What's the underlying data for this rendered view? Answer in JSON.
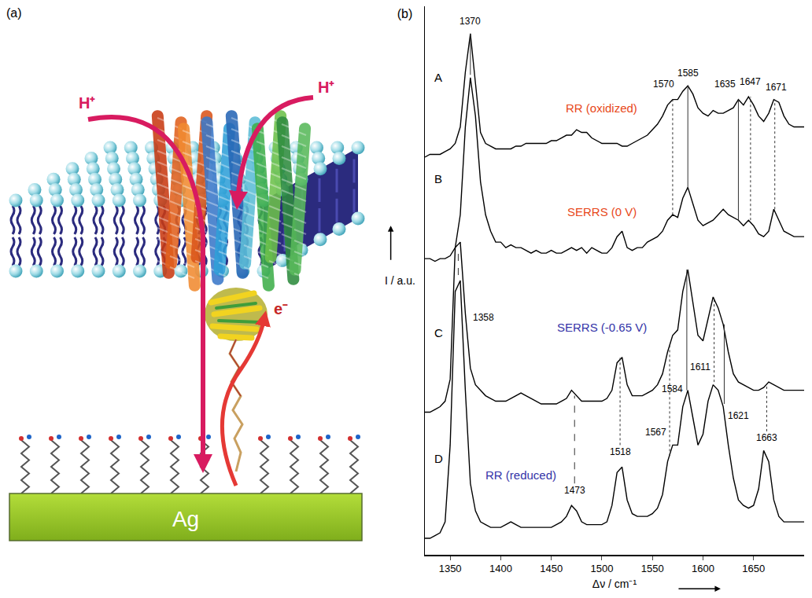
{
  "diagram": {
    "label": "(a)",
    "labels": {
      "proton_left": "H⁺",
      "proton_right": "H⁺",
      "electron": "e⁻",
      "electrode": "Ag"
    }
  },
  "chart_data": {
    "type": "line",
    "title": "(b)",
    "x_label": "Δν / cm⁻¹",
    "y_label": "I / a.u.",
    "x": [
      1325,
      1330,
      1335,
      1340,
      1345,
      1350,
      1355,
      1360,
      1365,
      1370,
      1375,
      1380,
      1385,
      1390,
      1395,
      1400,
      1405,
      1410,
      1415,
      1420,
      1425,
      1430,
      1435,
      1440,
      1445,
      1450,
      1455,
      1460,
      1465,
      1470,
      1475,
      1480,
      1485,
      1490,
      1495,
      1500,
      1505,
      1510,
      1515,
      1520,
      1525,
      1530,
      1535,
      1540,
      1545,
      1550,
      1555,
      1560,
      1565,
      1570,
      1575,
      1580,
      1585,
      1590,
      1595,
      1600,
      1605,
      1610,
      1615,
      1620,
      1625,
      1630,
      1635,
      1640,
      1645,
      1650,
      1655,
      1660,
      1665,
      1670,
      1675,
      1680,
      1685,
      1690,
      1695,
      1700
    ],
    "series": [
      {
        "name": "A",
        "color": "#000000",
        "values": [
          72.5,
          73,
          73,
          73,
          73.5,
          74,
          75,
          78,
          88,
          95,
          86,
          77,
          75,
          74.5,
          74,
          74,
          74,
          74,
          74.5,
          74.5,
          75,
          75,
          75,
          75,
          75,
          75.5,
          75.5,
          76,
          76.5,
          76.5,
          77.5,
          77,
          77,
          76,
          75.5,
          75,
          75,
          75,
          75,
          74.5,
          74.5,
          75,
          75.5,
          76,
          76.5,
          77.5,
          78.5,
          80,
          82,
          83,
          83,
          84.5,
          85.5,
          84,
          81.5,
          80.5,
          80,
          81,
          80.5,
          80.5,
          81,
          81.5,
          83,
          82,
          83.5,
          82,
          80,
          79,
          80.5,
          83,
          82.5,
          80,
          78.5,
          78,
          78,
          78
        ]
      },
      {
        "name": "B",
        "color": "#000000",
        "values": [
          54,
          54,
          53.5,
          54,
          54,
          54.5,
          56,
          62,
          78,
          87,
          80,
          68,
          62,
          59,
          57,
          57,
          56,
          56.5,
          56,
          56,
          55.5,
          55,
          55.5,
          55,
          55,
          55.5,
          55,
          55,
          55.5,
          56,
          55.5,
          56,
          55,
          56,
          55.5,
          55,
          55,
          56,
          58,
          59,
          56,
          55.5,
          56,
          56,
          57,
          57.5,
          58,
          59,
          61,
          62,
          61.5,
          65,
          67,
          64,
          61,
          60,
          60.5,
          61,
          62,
          63,
          62,
          61.5,
          61,
          60,
          61,
          60,
          58.5,
          58,
          59,
          63,
          61,
          59,
          58.5,
          58,
          58,
          58
        ]
      },
      {
        "name": "C",
        "color": "#000000",
        "values": [
          26,
          26,
          26.5,
          27,
          28,
          32,
          56,
          57,
          44,
          34,
          31,
          30,
          29,
          28.5,
          28,
          28,
          28,
          28.5,
          29,
          29.5,
          29,
          28.5,
          28,
          27.5,
          27.5,
          27.5,
          27.5,
          28,
          28.5,
          30,
          29,
          28,
          28,
          28,
          28,
          28,
          28.5,
          30,
          35,
          36,
          31,
          29,
          29,
          29,
          29.5,
          30,
          31,
          33,
          37,
          40,
          41,
          48,
          52,
          46,
          40,
          39,
          43,
          47,
          45,
          42,
          37,
          33,
          31.5,
          31,
          30.5,
          30,
          30,
          30.5,
          31.5,
          31,
          30.5,
          30,
          30,
          30,
          30,
          30
        ]
      },
      {
        "name": "D",
        "color": "#000000",
        "values": [
          3,
          3,
          3.5,
          4,
          6,
          20,
          48,
          50,
          30,
          13,
          8,
          6,
          5.5,
          5,
          5,
          5,
          5.5,
          6,
          5.5,
          5,
          5,
          5,
          5,
          5,
          5,
          5,
          5.5,
          6,
          7,
          9,
          8,
          6,
          5.5,
          5.5,
          5.5,
          5.5,
          6,
          9,
          15,
          16,
          10,
          7.5,
          7,
          7,
          7,
          7.5,
          8.5,
          11,
          17,
          20,
          20,
          27,
          30,
          25,
          20,
          22,
          28,
          31,
          30,
          27,
          20,
          14,
          10,
          9,
          8.5,
          9,
          12,
          19,
          17,
          10,
          7,
          6,
          6,
          6,
          6,
          6
        ]
      }
    ],
    "xlim": [
      1325,
      1700
    ],
    "xticks": [
      1350,
      1400,
      1450,
      1500,
      1550,
      1600,
      1650
    ],
    "ylim": [
      0,
      100
    ],
    "yticks": [],
    "tick_labels": "x",
    "grid": false,
    "annotations": [
      {
        "text": "RR (oxidized)",
        "x": 1500,
        "y": 80,
        "color": "#e8481a"
      },
      {
        "text": "SERRS (0 V)",
        "x": 1500,
        "y": 61,
        "color": "#e8481a"
      },
      {
        "text": "SERRS (-0.65 V)",
        "x": 1500,
        "y": 40,
        "color": "#3434a8"
      },
      {
        "text": "RR (reduced)",
        "x": 1420,
        "y": 13,
        "color": "#3434a8"
      },
      {
        "text": "1370",
        "x": 1370,
        "y": 96,
        "color": "#000000"
      },
      {
        "text": "1570",
        "x": 1561,
        "y": 84.5,
        "color": "#000000"
      },
      {
        "text": "1585",
        "x": 1585,
        "y": 86.5,
        "color": "#000000"
      },
      {
        "text": "1635",
        "x": 1622,
        "y": 84.5,
        "color": "#000000"
      },
      {
        "text": "1647",
        "x": 1647,
        "y": 85,
        "color": "#000000"
      },
      {
        "text": "1671",
        "x": 1672,
        "y": 84,
        "color": "#000000"
      },
      {
        "text": "1358",
        "x": 1383,
        "y": 42,
        "color": "#000000"
      },
      {
        "text": "1473",
        "x": 1473,
        "y": 10.5,
        "color": "#000000"
      },
      {
        "text": "1518",
        "x": 1518,
        "y": 17.5,
        "color": "#000000"
      },
      {
        "text": "1567",
        "x": 1553,
        "y": 21,
        "color": "#000000"
      },
      {
        "text": "1584",
        "x": 1570,
        "y": 29,
        "color": "#000000"
      },
      {
        "text": "1611",
        "x": 1597,
        "y": 33,
        "color": "#000000"
      },
      {
        "text": "1621",
        "x": 1635,
        "y": 24,
        "color": "#000000"
      },
      {
        "text": "1663",
        "x": 1663,
        "y": 20,
        "color": "#000000"
      }
    ],
    "peak_lines": [
      {
        "x": 1370,
        "y0": 87.5,
        "y1": 95,
        "line_style": "solid"
      },
      {
        "x": 1570,
        "y0": 62,
        "y1": 83,
        "line_style": "dotted"
      },
      {
        "x": 1585,
        "y0": 67,
        "y1": 85.5,
        "line_style": "solid"
      },
      {
        "x": 1635,
        "y0": 61,
        "y1": 83,
        "line_style": "solid"
      },
      {
        "x": 1647,
        "y0": 61,
        "y1": 83.5,
        "line_style": "dotted"
      },
      {
        "x": 1671,
        "y0": 63,
        "y1": 83,
        "line_style": "dotted"
      },
      {
        "x": 1358,
        "y0": 51,
        "y1": 56,
        "line_style": "dashed"
      },
      {
        "x": 1473,
        "y0": 13,
        "y1": 29,
        "line_style": "dashed"
      },
      {
        "x": 1518,
        "y0": 20,
        "y1": 36,
        "line_style": "dotted"
      },
      {
        "x": 1567,
        "y0": 18,
        "y1": 38.5,
        "line_style": "dotted"
      },
      {
        "x": 1584,
        "y0": 30,
        "y1": 52,
        "line_style": "solid"
      },
      {
        "x": 1611,
        "y0": 31.5,
        "y1": 47,
        "line_style": "dotted"
      },
      {
        "x": 1621,
        "y0": 27.5,
        "y1": 42,
        "line_style": "solid"
      },
      {
        "x": 1663,
        "y0": 22.5,
        "y1": 31,
        "line_style": "dotted"
      }
    ]
  }
}
